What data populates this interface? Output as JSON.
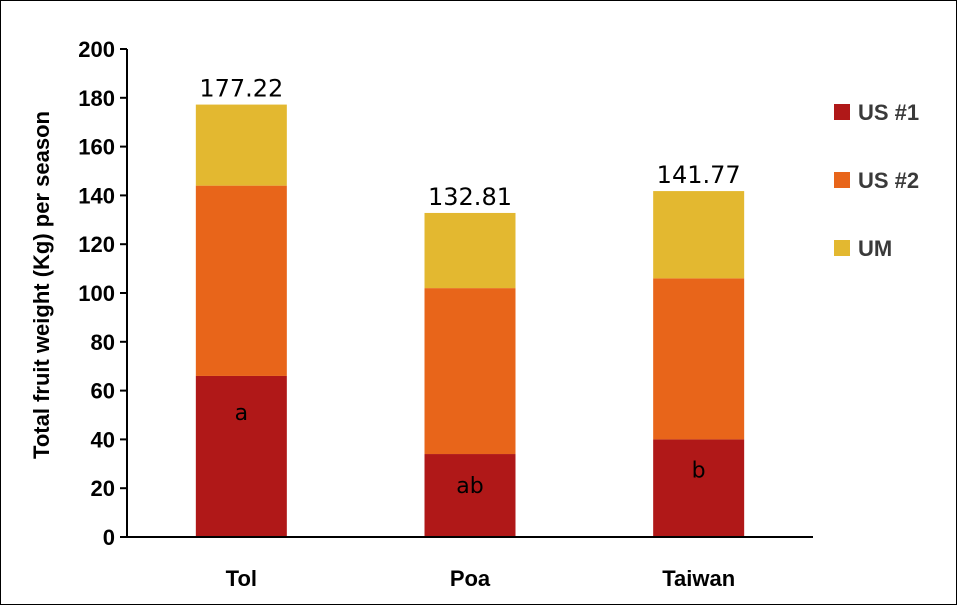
{
  "chart_data": {
    "type": "bar",
    "stacked": true,
    "title": "",
    "xlabel": "",
    "ylabel": "Total fruit weight (Kg) per season",
    "ylim": [
      0,
      200
    ],
    "yticks": [
      0,
      20,
      40,
      60,
      80,
      100,
      120,
      140,
      160,
      180,
      200
    ],
    "categories": [
      "Tol",
      "Poa",
      "Taiwan"
    ],
    "series": [
      {
        "name": "US #1",
        "color": "#b01818",
        "values": [
          66,
          34,
          40
        ]
      },
      {
        "name": "US #2",
        "color": "#e8651a",
        "values": [
          78,
          68,
          66
        ]
      },
      {
        "name": "UM",
        "color": "#e3b830",
        "values": [
          33.22,
          30.81,
          35.77
        ]
      }
    ],
    "totals": [
      "177.22",
      "132.81",
      "141.77"
    ],
    "significance_letters": [
      "a",
      "ab",
      "b"
    ],
    "legend": {
      "position": "right"
    },
    "grid": false
  }
}
